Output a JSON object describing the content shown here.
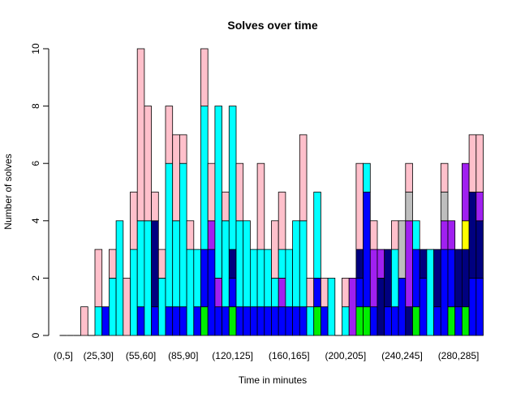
{
  "chart_data": {
    "type": "bar",
    "stacked": true,
    "title": "Solves over time",
    "xlabel": "Time in minutes",
    "ylabel": "Number of solves",
    "ylim": [
      0,
      10
    ],
    "yticks": [
      0,
      2,
      4,
      6,
      8,
      10
    ],
    "bin_width_minutes": 5,
    "categories": [
      "(0,5]",
      "(5,10]",
      "(10,15]",
      "(15,20]",
      "(20,25]",
      "(25,30]",
      "(30,35]",
      "(35,40]",
      "(40,45]",
      "(45,50]",
      "(50,55]",
      "(55,60]",
      "(60,65]",
      "(65,70]",
      "(70,75]",
      "(75,80]",
      "(80,85]",
      "(85,90]",
      "(90,95]",
      "(95,100]",
      "(100,105]",
      "(105,110]",
      "(110,115]",
      "(115,120]",
      "(120,125]",
      "(125,130]",
      "(130,135]",
      "(135,140]",
      "(140,145]",
      "(145,150]",
      "(150,155]",
      "(155,160]",
      "(160,165]",
      "(165,170]",
      "(170,175]",
      "(175,180]",
      "(180,185]",
      "(185,190]",
      "(190,195]",
      "(195,200]",
      "(200,205]",
      "(205,210]",
      "(210,215]",
      "(215,220]",
      "(220,225]",
      "(225,230]",
      "(230,235]",
      "(235,240]",
      "(240,245]",
      "(245,250]",
      "(250,255]",
      "(255,260]",
      "(260,265]",
      "(265,270]",
      "(270,275]",
      "(275,280]",
      "(280,285]",
      "(285,290]",
      "(290,295]",
      "(295,300]"
    ],
    "visible_tick_labels": [
      "(0,5]",
      "(25,30]",
      "(55,60]",
      "(85,90]",
      "(120,125]",
      "(160,165]",
      "(200,205]",
      "(240,245]",
      "(280,285]"
    ],
    "stack_order_bottom_to_top": [
      "green",
      "blue",
      "navy",
      "gold",
      "purple",
      "gray",
      "cyan",
      "pink"
    ],
    "colors": {
      "green": "#00ee00",
      "blue": "#0000ff",
      "navy": "#000080",
      "gold": "#ffff00",
      "purple": "#a020f0",
      "gray": "#bebebe",
      "cyan": "#00ffff",
      "pink": "#ffc0cb"
    },
    "bars": [
      {},
      {},
      {},
      {
        "pink": 1
      },
      {},
      {
        "cyan": 1,
        "pink": 2
      },
      {
        "blue": 1
      },
      {
        "cyan": 2,
        "pink": 1
      },
      {
        "cyan": 4
      },
      {
        "pink": 2
      },
      {
        "cyan": 3,
        "pink": 2
      },
      {
        "blue": 1,
        "cyan": 3,
        "pink": 6
      },
      {
        "cyan": 4,
        "pink": 4
      },
      {
        "blue": 1,
        "navy": 3,
        "pink": 1
      },
      {
        "cyan": 2,
        "pink": 1
      },
      {
        "blue": 1,
        "cyan": 5,
        "pink": 2
      },
      {
        "blue": 1,
        "cyan": 3,
        "pink": 3
      },
      {
        "blue": 1,
        "cyan": 5,
        "pink": 1
      },
      {
        "cyan": 3,
        "pink": 1
      },
      {
        "blue": 1,
        "cyan": 2
      },
      {
        "green": 1,
        "blue": 2,
        "cyan": 5,
        "pink": 2
      },
      {
        "blue": 3,
        "purple": 1,
        "pink": 2
      },
      {
        "blue": 1,
        "cyan": 6,
        "purple": 1
      },
      {
        "blue": 1,
        "cyan": 3,
        "pink": 1
      },
      {
        "green": 1,
        "blue": 1,
        "cyan": 5,
        "navy": 1
      },
      {
        "blue": 1,
        "cyan": 3,
        "pink": 2
      },
      {
        "blue": 1,
        "cyan": 3
      },
      {
        "blue": 1,
        "cyan": 2
      },
      {
        "blue": 1,
        "cyan": 2,
        "pink": 3
      },
      {
        "blue": 1,
        "cyan": 2
      },
      {
        "blue": 1,
        "cyan": 1,
        "pink": 2
      },
      {
        "blue": 1,
        "cyan": 1,
        "purple": 1,
        "pink": 2
      },
      {
        "blue": 1,
        "cyan": 2
      },
      {
        "blue": 1,
        "cyan": 3
      },
      {
        "blue": 1,
        "cyan": 3,
        "pink": 3
      },
      {
        "cyan": 1,
        "pink": 1
      },
      {
        "green": 1,
        "blue": 1,
        "cyan": 3
      },
      {
        "blue": 1,
        "pink": 1
      },
      {
        "cyan": 2
      },
      {},
      {
        "cyan": 1,
        "pink": 1
      },
      {
        "purple": 2
      },
      {
        "green": 1,
        "blue": 1,
        "navy": 1,
        "pink": 3
      },
      {
        "green": 1,
        "blue": 4,
        "cyan": 1
      },
      {
        "blue": 1,
        "purple": 2,
        "pink": 1
      },
      {
        "purple": 1,
        "navy": 2
      },
      {
        "blue": 1,
        "navy": 2
      },
      {
        "blue": 1,
        "cyan": 2,
        "pink": 1
      },
      {
        "blue": 2,
        "gray": 2
      },
      {
        "navy": 1,
        "purple": 3,
        "gray": 1,
        "pink": 1
      },
      {
        "green": 1,
        "blue": 2,
        "cyan": 1
      },
      {
        "blue": 2,
        "navy": 1
      },
      {
        "cyan": 3
      },
      {
        "blue": 1,
        "navy": 2
      },
      {
        "blue": 3,
        "purple": 1,
        "gray": 1,
        "pink": 1
      },
      {
        "green": 1,
        "purple": 1,
        "blue": 2
      },
      {
        "blue": 1,
        "navy": 2
      },
      {
        "green": 1,
        "purple": 2,
        "gold": 1,
        "navy": 2
      },
      {
        "blue": 2,
        "navy": 3,
        "pink": 2
      },
      {
        "blue": 2,
        "purple": 1,
        "navy": 2,
        "pink": 2
      }
    ]
  }
}
